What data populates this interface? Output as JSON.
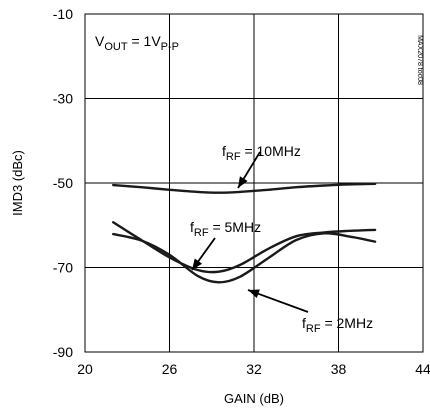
{
  "chart_data": {
    "type": "line",
    "xlabel": "GAIN (dB)",
    "ylabel": "IMD3 (dBc)",
    "xlim": [
      20,
      44
    ],
    "ylim": [
      -90,
      -10
    ],
    "x_ticks": [
      "20",
      "26",
      "32",
      "38",
      "44"
    ],
    "y_ticks": [
      "-10",
      "-30",
      "-50",
      "-70",
      "-90"
    ],
    "grid": true,
    "condition": {
      "main": "V",
      "main_sub": "OUT",
      "eq": " = 1V",
      "tail_sub": "P-P"
    },
    "part_code": "MAX2078 toc08",
    "series": [
      {
        "name": "fRF = 10MHz",
        "label_main": "f",
        "label_sub": "RF",
        "label_rest": " = 10MHz",
        "x": [
          22,
          24,
          26,
          28,
          29.5,
          31,
          33,
          35,
          37,
          39,
          40.6
        ],
        "y": [
          -50.5,
          -51.0,
          -51.6,
          -52.1,
          -52.3,
          -52.1,
          -51.6,
          -51.0,
          -50.6,
          -50.3,
          -50.2
        ]
      },
      {
        "name": "fRF = 5MHz",
        "label_main": "f",
        "label_sub": "RF",
        "label_rest": " = 5MHz",
        "x": [
          22,
          24,
          26,
          28,
          29.5,
          31,
          33,
          35,
          37,
          39,
          40.6
        ],
        "y": [
          -59.3,
          -63.5,
          -67.6,
          -70.6,
          -71.0,
          -69.4,
          -65.6,
          -62.6,
          -61.7,
          -61.3,
          -61.1
        ]
      },
      {
        "name": "fRF = 2MHz",
        "label_main": "f",
        "label_sub": "RF",
        "label_rest": " = 2MHz",
        "x": [
          22,
          24,
          26,
          28,
          29.5,
          31,
          33,
          35,
          37,
          39,
          40.6
        ],
        "y": [
          -62.1,
          -63.6,
          -67.0,
          -72.0,
          -73.5,
          -72.2,
          -67.8,
          -63.5,
          -61.9,
          -62.8,
          -63.9
        ]
      }
    ]
  }
}
